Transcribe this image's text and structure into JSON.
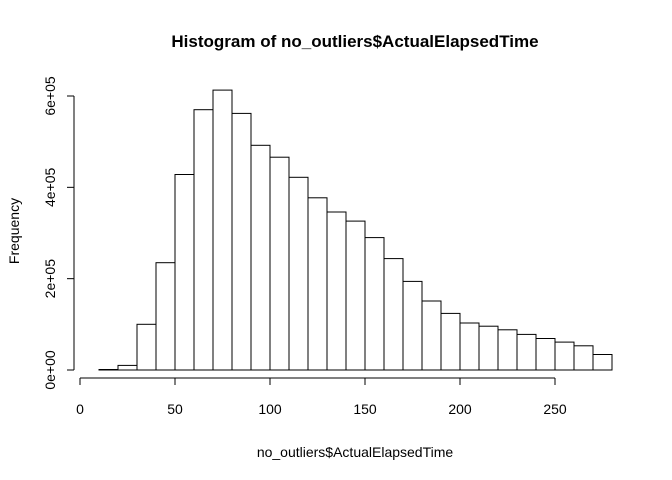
{
  "chart_data": {
    "type": "bar",
    "title": "Histogram of no_outliers$ActualElapsedTime",
    "xlabel": "no_outliers$ActualElapsedTime",
    "ylabel": "Frequency",
    "bin_edges": [
      10,
      20,
      30,
      40,
      50,
      60,
      70,
      80,
      90,
      100,
      110,
      120,
      130,
      140,
      150,
      160,
      170,
      180,
      190,
      200,
      210,
      220,
      230,
      240,
      250,
      260,
      270,
      280
    ],
    "values": [
      1000,
      10000,
      100000,
      235000,
      428000,
      570000,
      613000,
      562000,
      492000,
      466000,
      422000,
      377000,
      346000,
      326000,
      290000,
      244000,
      194000,
      151000,
      124000,
      103000,
      96000,
      88000,
      78000,
      69000,
      61000,
      53000,
      34000
    ],
    "xlim": [
      0,
      280
    ],
    "ylim": [
      0,
      600000
    ],
    "x_ticks": [
      0,
      50,
      100,
      150,
      200,
      250
    ],
    "x_tick_labels": [
      "0",
      "50",
      "100",
      "150",
      "200",
      "250"
    ],
    "y_ticks": [
      0,
      200000,
      400000,
      600000
    ],
    "y_tick_labels": [
      "0e+00",
      "2e+05",
      "4e+05",
      "6e+05"
    ],
    "grid": false
  }
}
